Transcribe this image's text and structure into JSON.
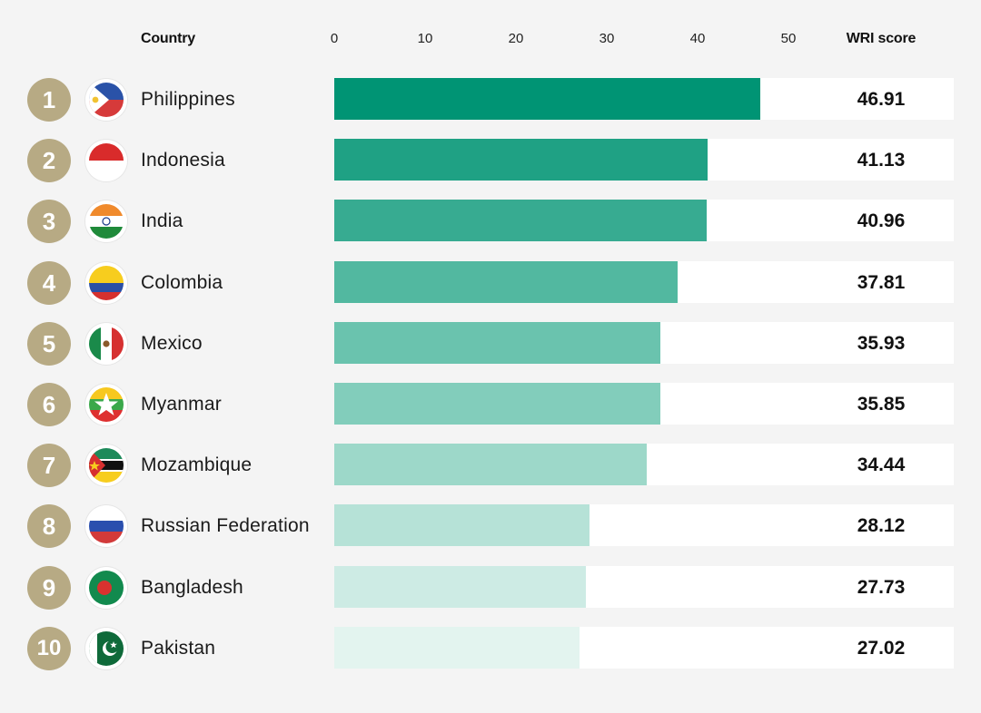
{
  "chart_data": {
    "type": "bar",
    "orientation": "horizontal",
    "title": "",
    "xlabel": "",
    "ylabel": "",
    "column_headers": {
      "country": "Country",
      "score": "WRI score"
    },
    "xlim": [
      0,
      50
    ],
    "x_ticks": [
      "0",
      "10",
      "20",
      "30",
      "40",
      "50"
    ],
    "grid": false,
    "legend": "none",
    "ranks": [
      "1",
      "2",
      "3",
      "4",
      "5",
      "6",
      "7",
      "8",
      "9",
      "10"
    ],
    "categories": [
      "Philippines",
      "Indonesia",
      "India",
      "Colombia",
      "Mexico",
      "Myanmar",
      "Mozambique",
      "Russian Federation",
      "Bangladesh",
      "Pakistan"
    ],
    "values": [
      46.91,
      41.13,
      40.96,
      37.81,
      35.93,
      35.85,
      34.44,
      28.12,
      27.73,
      27.02
    ],
    "value_labels": [
      "46.91",
      "41.13",
      "40.96",
      "37.81",
      "35.93",
      "35.85",
      "34.44",
      "28.12",
      "27.73",
      "27.02"
    ],
    "flag_icons": [
      "philippines-flag-icon",
      "indonesia-flag-icon",
      "india-flag-icon",
      "colombia-flag-icon",
      "mexico-flag-icon",
      "myanmar-flag-icon",
      "mozambique-flag-icon",
      "russia-flag-icon",
      "bangladesh-flag-icon",
      "pakistan-flag-icon"
    ],
    "bar_colors": [
      "#009474",
      "#1fa184",
      "#37ab91",
      "#52b8a0",
      "#6ac3ae",
      "#82cdbb",
      "#9dd8c9",
      "#b6e2d7",
      "#cdebe4",
      "#e3f4ef"
    ],
    "colors": {
      "background": "#f4f4f4",
      "track": "#ffffff",
      "rank_badge": "#b7aa84"
    }
  }
}
